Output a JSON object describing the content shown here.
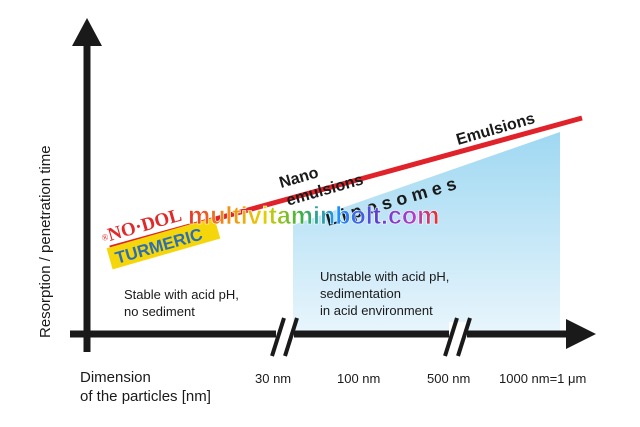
{
  "axes": {
    "y_label": "Resorption / penetration time",
    "x_label": [
      "Dimension",
      "of the particles [nm]"
    ]
  },
  "x_ticks": [
    {
      "label": "30 nm",
      "color": "#e02a2a"
    },
    {
      "label": "100 nm",
      "color": "#1a1a1a"
    },
    {
      "label": "500 nm",
      "color": "#1a1a1a"
    },
    {
      "label": "1000 nm=1 μm",
      "color": "#1a1a1a"
    }
  ],
  "curve_labels": {
    "nano": [
      "Nano",
      "emulsions"
    ],
    "emulsions": "Emulsions",
    "liposomes": "L i p o s o m e s"
  },
  "regions": {
    "stable": [
      "Stable with acid pH,",
      "no sediment"
    ],
    "unstable": [
      "Unstable with acid pH,",
      "sedimentation",
      "in acid environment"
    ]
  },
  "brand": {
    "registered": "®",
    "name": "NO·DOL",
    "product": "TURMERIC"
  },
  "watermark": "multivitaminbolt.com",
  "colors": {
    "red_line": "#e0222a",
    "region_fill": "#bfe3f7",
    "axis": "#1a1a1a",
    "brand_red": "#e02a2a",
    "brand_yellow": "#f5d60a"
  }
}
